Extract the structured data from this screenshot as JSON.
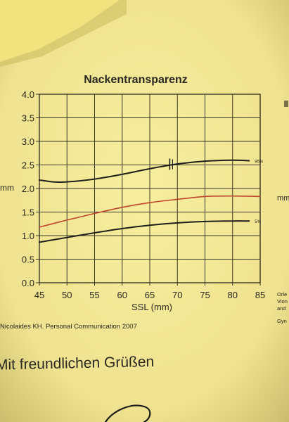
{
  "chart_data": {
    "type": "line",
    "title": "Nackentransparenz",
    "xlabel": "SSL (mm)",
    "ylabel": "mm",
    "xlim": [
      45,
      85
    ],
    "ylim": [
      0,
      4
    ],
    "x_ticks": [
      "45",
      "50",
      "55",
      "60",
      "65",
      "70",
      "75",
      "80",
      "85"
    ],
    "y_ticks": [
      "0.0",
      "0.5",
      "1.0",
      "1.5",
      "2.0",
      "2.5",
      "3.0",
      "3.5",
      "4.0"
    ],
    "grid": true,
    "series": [
      {
        "name": "95%",
        "color": "#1e1e1a",
        "x": [
          45,
          47.5,
          50,
          55,
          60,
          65,
          70,
          75,
          80,
          83
        ],
        "y": [
          2.18,
          2.14,
          2.14,
          2.2,
          2.3,
          2.42,
          2.52,
          2.58,
          2.6,
          2.59
        ]
      },
      {
        "name": "",
        "color": "#c0442c",
        "x": [
          45,
          50,
          55,
          60,
          65,
          70,
          75,
          80,
          85
        ],
        "y": [
          1.18,
          1.33,
          1.47,
          1.6,
          1.7,
          1.77,
          1.83,
          1.84,
          1.83
        ]
      },
      {
        "name": "5%",
        "color": "#1e1e1a",
        "x": [
          45,
          50,
          55,
          60,
          65,
          70,
          75,
          80,
          83
        ],
        "y": [
          0.86,
          0.96,
          1.06,
          1.15,
          1.22,
          1.27,
          1.3,
          1.31,
          1.31
        ]
      }
    ],
    "marker": {
      "x": 69,
      "y": 2.5
    }
  },
  "page": {
    "citation": "Nicolaides KH. Personal Communication 2007",
    "greeting": "Mit freundlichen Grüßen",
    "right_mm": "mm",
    "right_notes": [
      "Orle",
      "Vion",
      "and",
      "Gyn"
    ]
  }
}
